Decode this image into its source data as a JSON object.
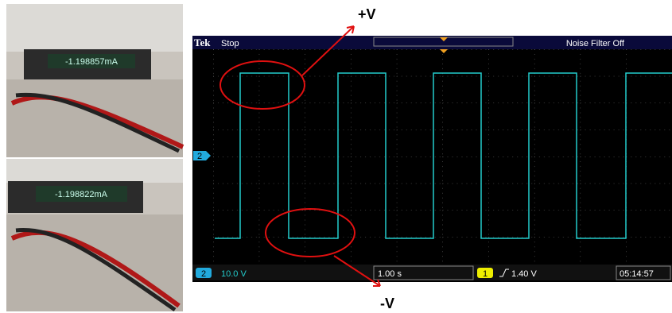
{
  "photos": {
    "top_meter_reading": "-1.198857mA",
    "bottom_meter_reading": "-1.198822mA"
  },
  "scope": {
    "brand": "Tek",
    "state": "Stop",
    "noise_filter": "Noise Filter Off",
    "channel_marker": "2",
    "status_bar": {
      "channel": "2",
      "volts_per_div": "10.0 V",
      "time_per_div": "1.00 s",
      "trigger_channel": "1",
      "trigger_level": "1.40 V",
      "clock": "05:14:57"
    }
  },
  "annotations": {
    "high": "+V",
    "low": "-V"
  }
}
